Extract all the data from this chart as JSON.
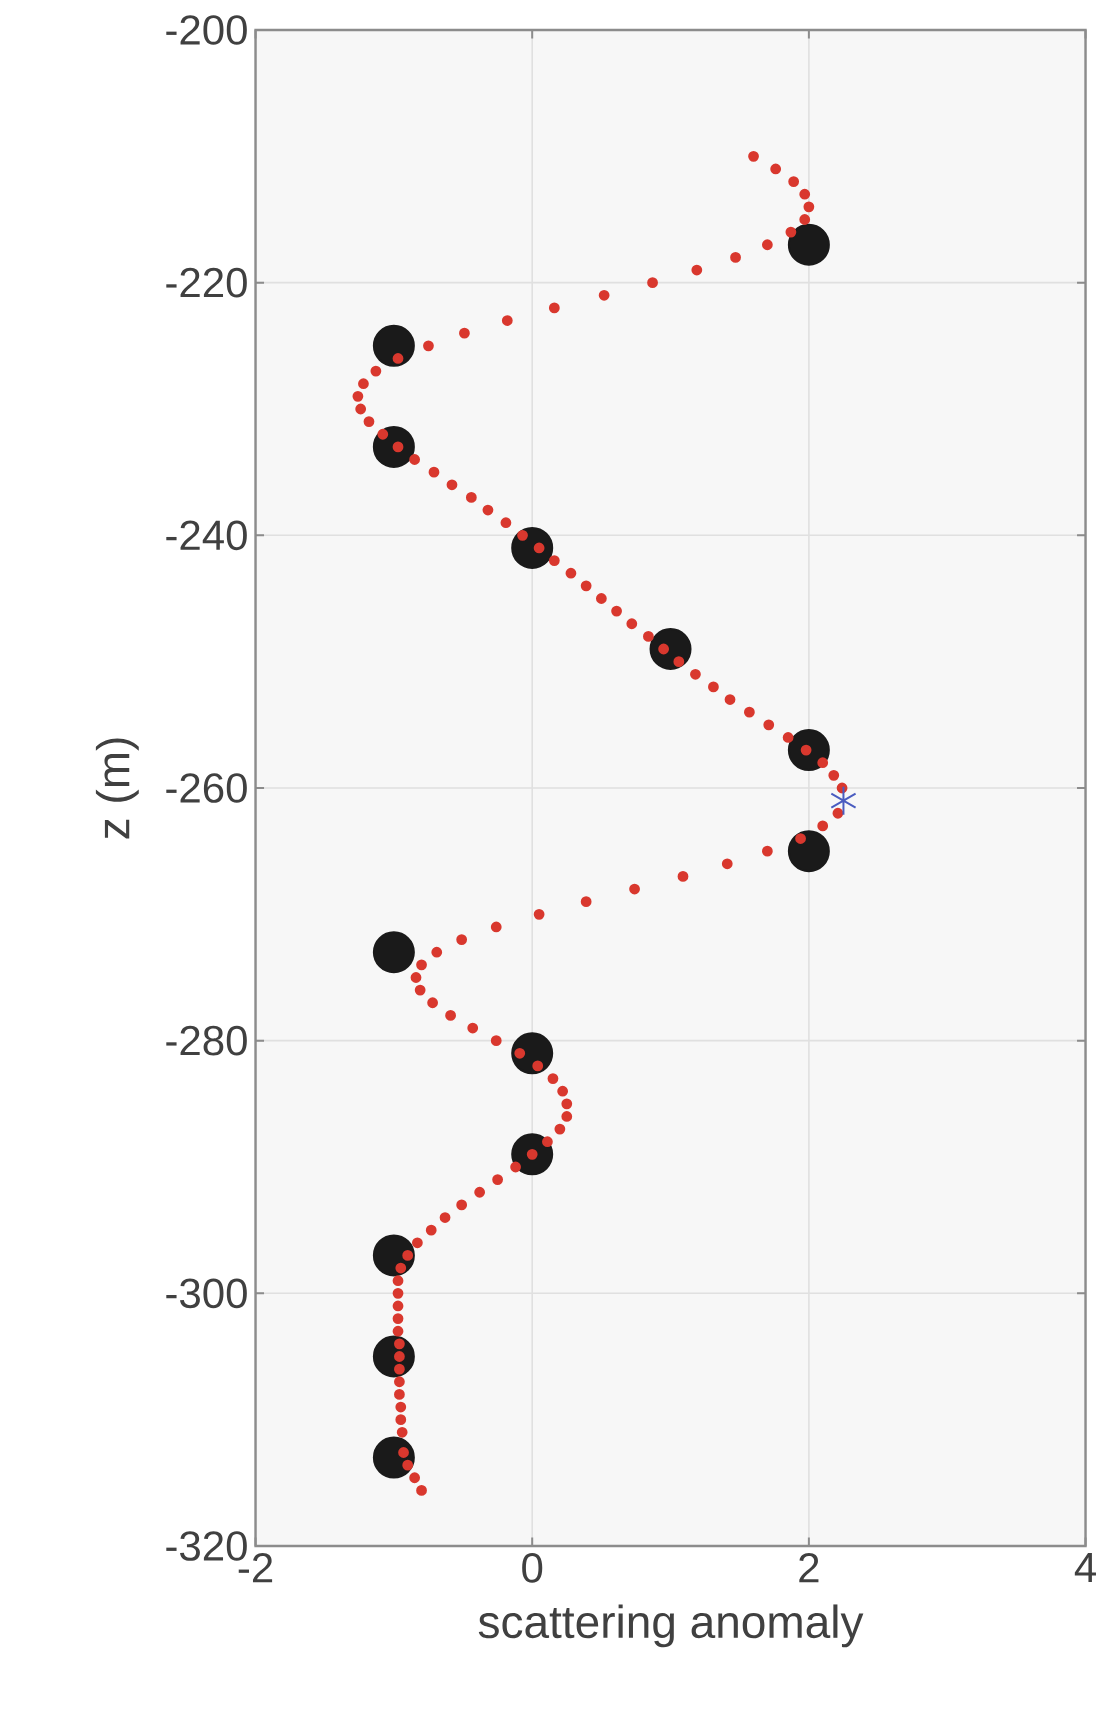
{
  "chart_data": {
    "type": "scatter",
    "xlabel": "scattering anomaly",
    "ylabel": "z (m)",
    "xlim": [
      -2,
      4
    ],
    "ylim": [
      -320,
      -200
    ],
    "xticks": [
      -2,
      0,
      2,
      4
    ],
    "yticks": [
      -320,
      -300,
      -280,
      -260,
      -240,
      -220,
      -200
    ],
    "grid": true,
    "series": [
      {
        "marker": "circle",
        "color": "#1a1a1a",
        "x": [
          2,
          -1,
          -1,
          0,
          1,
          2,
          2,
          -1,
          0,
          0,
          -1,
          -1,
          -1
        ],
        "values": [
          -217,
          -225,
          -233,
          -241,
          -249,
          -257,
          -265,
          -273,
          -281,
          -289,
          -297,
          -305,
          -313
        ]
      },
      {
        "marker": "circle",
        "color": "#d9382e",
        "x": [
          1.6,
          1.76,
          1.89,
          1.97,
          2.0,
          1.97,
          1.87,
          1.7,
          1.47,
          1.19,
          0.87,
          0.52,
          0.16,
          -0.18,
          -0.49,
          -0.75,
          -0.97,
          -1.13,
          -1.22,
          -1.26,
          -1.24,
          -1.18,
          -1.08,
          -0.97,
          -0.85,
          -0.71,
          -0.58,
          -0.44,
          -0.32,
          -0.19,
          -0.07,
          0.05,
          0.16,
          0.28,
          0.39,
          0.5,
          0.61,
          0.72,
          0.84,
          0.95,
          1.06,
          1.18,
          1.31,
          1.43,
          1.57,
          1.71,
          1.85,
          1.98,
          2.1,
          2.18,
          2.24,
          2.21,
          2.1,
          1.94,
          1.7,
          1.41,
          1.09,
          0.74,
          0.39,
          0.05,
          -0.26,
          -0.51,
          -0.69,
          -0.8,
          -0.84,
          -0.81,
          -0.72,
          -0.59,
          -0.43,
          -0.26,
          -0.09,
          0.04,
          0.15,
          0.22,
          0.25,
          0.25,
          0.2,
          0.11,
          0.0,
          -0.12,
          -0.25,
          -0.38,
          -0.51,
          -0.63,
          -0.73,
          -0.83,
          -0.9,
          -0.95,
          -0.97,
          -0.97,
          -0.97,
          -0.97,
          -0.97,
          -0.96,
          -0.96,
          -0.96,
          -0.96,
          -0.96,
          -0.95,
          -0.95,
          -0.94,
          -0.93,
          -0.9,
          -0.85,
          -0.8
        ],
        "values": [
          -210,
          -211,
          -212,
          -213,
          -214,
          -215,
          -216,
          -217,
          -218,
          -219,
          -220,
          -221,
          -222,
          -223,
          -224,
          -225,
          -226,
          -227,
          -228,
          -229,
          -230,
          -231,
          -232,
          -233,
          -234,
          -235,
          -236,
          -237,
          -238,
          -239,
          -240,
          -241,
          -242,
          -243,
          -244,
          -245,
          -246,
          -247,
          -248,
          -249,
          -250,
          -251,
          -252,
          -253,
          -254,
          -255,
          -256,
          -257,
          -258,
          -259,
          -260,
          -262,
          -263,
          -264,
          -265,
          -266,
          -267,
          -268,
          -269,
          -270,
          -271,
          -272,
          -273,
          -274,
          -275,
          -276,
          -277,
          -278,
          -279,
          -280,
          -281,
          -282,
          -283,
          -284,
          -285,
          -286,
          -287,
          -288,
          -289,
          -290,
          -291,
          -292,
          -293,
          -294,
          -295,
          -296,
          -297,
          -298,
          -299,
          -300,
          -301,
          -302,
          -303,
          -304,
          -305,
          -306,
          -307,
          -308,
          -309,
          -310,
          -311,
          -312.6,
          -313.6,
          -314.6,
          -315.6
        ]
      },
      {
        "color": "#4a5cc0",
        "x": [
          2.25
        ],
        "values": [
          -261
        ]
      }
    ]
  }
}
